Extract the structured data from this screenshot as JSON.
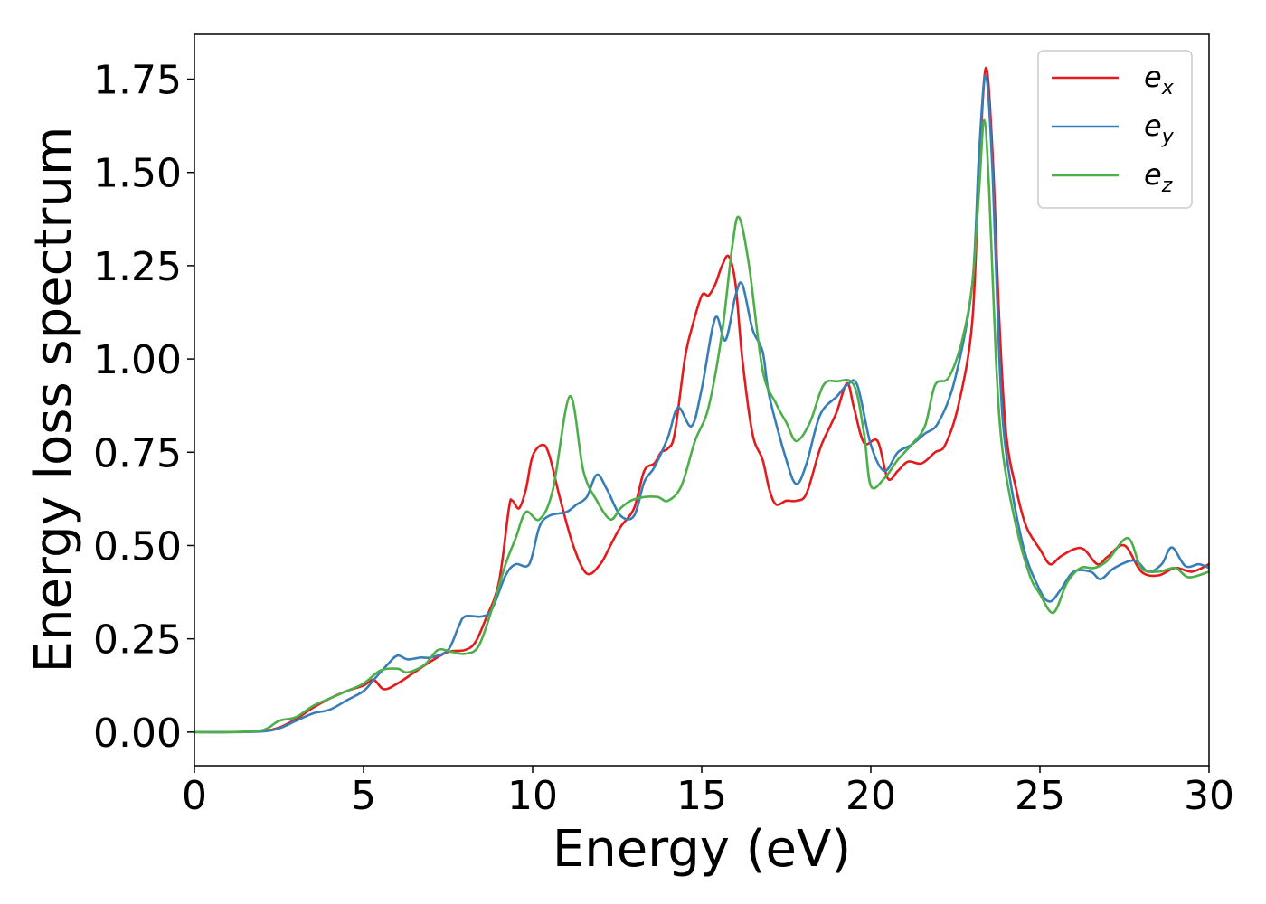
{
  "chart_data": {
    "type": "line",
    "title": "",
    "xlabel": "Energy (eV)",
    "ylabel": "Energy loss spectrum",
    "xlim": [
      0,
      30
    ],
    "ylim": [
      -0.09,
      1.87
    ],
    "x_ticks": [
      0,
      5,
      10,
      15,
      20,
      25,
      30
    ],
    "y_ticks": [
      0.0,
      0.25,
      0.5,
      0.75,
      1.0,
      1.25,
      1.5,
      1.75
    ],
    "x_tick_labels": [
      "0",
      "5",
      "10",
      "15",
      "20",
      "25",
      "30"
    ],
    "y_tick_labels": [
      "0.00",
      "0.25",
      "0.50",
      "0.75",
      "1.00",
      "1.25",
      "1.50",
      "1.75"
    ],
    "grid": false,
    "legend": {
      "placement": "top-right",
      "entries": [
        {
          "base": "e",
          "sub": "x",
          "color": "#e41a1c"
        },
        {
          "base": "e",
          "sub": "y",
          "color": "#377eb8"
        },
        {
          "base": "e",
          "sub": "z",
          "color": "#4daf4a"
        }
      ]
    },
    "series": [
      {
        "color": "#e41a1c",
        "points": [
          [
            0,
            0
          ],
          [
            1,
            0
          ],
          [
            2,
            0.003
          ],
          [
            2.5,
            0.012
          ],
          [
            3,
            0.035
          ],
          [
            3.5,
            0.065
          ],
          [
            4,
            0.09
          ],
          [
            4.5,
            0.11
          ],
          [
            5,
            0.125
          ],
          [
            5.3,
            0.14
          ],
          [
            5.6,
            0.115
          ],
          [
            6,
            0.13
          ],
          [
            6.5,
            0.16
          ],
          [
            7,
            0.19
          ],
          [
            7.5,
            0.215
          ],
          [
            8,
            0.22
          ],
          [
            8.3,
            0.24
          ],
          [
            8.6,
            0.3
          ],
          [
            9,
            0.4
          ],
          [
            9.3,
            0.6
          ],
          [
            9.4,
            0.62
          ],
          [
            9.6,
            0.6
          ],
          [
            9.8,
            0.65
          ],
          [
            10,
            0.74
          ],
          [
            10.3,
            0.77
          ],
          [
            10.5,
            0.74
          ],
          [
            10.8,
            0.63
          ],
          [
            11.2,
            0.5
          ],
          [
            11.6,
            0.425
          ],
          [
            12,
            0.45
          ],
          [
            12.3,
            0.5
          ],
          [
            12.6,
            0.55
          ],
          [
            13,
            0.6
          ],
          [
            13.3,
            0.7
          ],
          [
            13.6,
            0.72
          ],
          [
            13.8,
            0.75
          ],
          [
            14,
            0.76
          ],
          [
            14.2,
            0.8
          ],
          [
            14.5,
            1.0
          ],
          [
            14.7,
            1.08
          ],
          [
            15,
            1.17
          ],
          [
            15.2,
            1.17
          ],
          [
            15.4,
            1.2
          ],
          [
            15.6,
            1.25
          ],
          [
            15.8,
            1.275
          ],
          [
            16,
            1.2
          ],
          [
            16.2,
            1.0
          ],
          [
            16.5,
            0.8
          ],
          [
            16.8,
            0.73
          ],
          [
            17,
            0.65
          ],
          [
            17.2,
            0.61
          ],
          [
            17.5,
            0.62
          ],
          [
            17.8,
            0.62
          ],
          [
            18.1,
            0.64
          ],
          [
            18.5,
            0.76
          ],
          [
            18.8,
            0.82
          ],
          [
            19,
            0.86
          ],
          [
            19.3,
            0.935
          ],
          [
            19.5,
            0.87
          ],
          [
            19.8,
            0.775
          ],
          [
            20.2,
            0.78
          ],
          [
            20.5,
            0.68
          ],
          [
            20.8,
            0.7
          ],
          [
            21.1,
            0.725
          ],
          [
            21.5,
            0.72
          ],
          [
            21.9,
            0.75
          ],
          [
            22.2,
            0.77
          ],
          [
            22.6,
            0.88
          ],
          [
            23,
            1.1
          ],
          [
            23.2,
            1.5
          ],
          [
            23.4,
            1.78
          ],
          [
            23.6,
            1.55
          ],
          [
            23.8,
            1.1
          ],
          [
            24,
            0.8
          ],
          [
            24.3,
            0.65
          ],
          [
            24.6,
            0.55
          ],
          [
            25,
            0.49
          ],
          [
            25.3,
            0.45
          ],
          [
            25.6,
            0.47
          ],
          [
            26,
            0.49
          ],
          [
            26.3,
            0.49
          ],
          [
            26.7,
            0.45
          ],
          [
            27,
            0.47
          ],
          [
            27.5,
            0.5
          ],
          [
            28,
            0.43
          ],
          [
            28.5,
            0.42
          ],
          [
            29,
            0.44
          ],
          [
            29.5,
            0.43
          ],
          [
            30,
            0.45
          ]
        ]
      },
      {
        "color": "#377eb8",
        "points": [
          [
            0,
            0
          ],
          [
            1,
            0
          ],
          [
            2,
            0.002
          ],
          [
            2.5,
            0.01
          ],
          [
            3,
            0.03
          ],
          [
            3.5,
            0.05
          ],
          [
            4,
            0.06
          ],
          [
            4.5,
            0.085
          ],
          [
            5,
            0.11
          ],
          [
            5.3,
            0.14
          ],
          [
            5.7,
            0.18
          ],
          [
            6,
            0.205
          ],
          [
            6.3,
            0.195
          ],
          [
            6.7,
            0.2
          ],
          [
            7,
            0.2
          ],
          [
            7.5,
            0.22
          ],
          [
            7.8,
            0.28
          ],
          [
            8,
            0.31
          ],
          [
            8.5,
            0.31
          ],
          [
            8.8,
            0.33
          ],
          [
            9.2,
            0.42
          ],
          [
            9.5,
            0.45
          ],
          [
            9.9,
            0.45
          ],
          [
            10.2,
            0.55
          ],
          [
            10.5,
            0.58
          ],
          [
            11,
            0.59
          ],
          [
            11.3,
            0.61
          ],
          [
            11.6,
            0.63
          ],
          [
            11.9,
            0.69
          ],
          [
            12.2,
            0.65
          ],
          [
            12.6,
            0.58
          ],
          [
            13,
            0.58
          ],
          [
            13.3,
            0.67
          ],
          [
            13.6,
            0.71
          ],
          [
            14,
            0.79
          ],
          [
            14.3,
            0.87
          ],
          [
            14.7,
            0.82
          ],
          [
            15,
            0.92
          ],
          [
            15.4,
            1.11
          ],
          [
            15.7,
            1.05
          ],
          [
            16,
            1.17
          ],
          [
            16.2,
            1.2
          ],
          [
            16.5,
            1.08
          ],
          [
            16.8,
            1.02
          ],
          [
            17,
            0.9
          ],
          [
            17.5,
            0.73
          ],
          [
            17.8,
            0.665
          ],
          [
            18.1,
            0.72
          ],
          [
            18.5,
            0.85
          ],
          [
            19,
            0.9
          ],
          [
            19.3,
            0.93
          ],
          [
            19.6,
            0.93
          ],
          [
            20,
            0.77
          ],
          [
            20.4,
            0.7
          ],
          [
            20.8,
            0.75
          ],
          [
            21.2,
            0.77
          ],
          [
            21.6,
            0.8
          ],
          [
            22,
            0.83
          ],
          [
            22.5,
            0.95
          ],
          [
            23,
            1.2
          ],
          [
            23.2,
            1.55
          ],
          [
            23.4,
            1.76
          ],
          [
            23.6,
            1.5
          ],
          [
            23.8,
            1.0
          ],
          [
            24,
            0.75
          ],
          [
            24.5,
            0.5
          ],
          [
            25,
            0.38
          ],
          [
            25.3,
            0.35
          ],
          [
            25.6,
            0.38
          ],
          [
            26,
            0.43
          ],
          [
            26.5,
            0.43
          ],
          [
            26.8,
            0.41
          ],
          [
            27.2,
            0.44
          ],
          [
            27.8,
            0.46
          ],
          [
            28.2,
            0.43
          ],
          [
            28.6,
            0.45
          ],
          [
            28.9,
            0.495
          ],
          [
            29.3,
            0.445
          ],
          [
            29.7,
            0.45
          ],
          [
            30,
            0.44
          ]
        ]
      },
      {
        "color": "#4daf4a",
        "points": [
          [
            0,
            0
          ],
          [
            1,
            0
          ],
          [
            2,
            0.005
          ],
          [
            2.5,
            0.03
          ],
          [
            3,
            0.04
          ],
          [
            3.5,
            0.07
          ],
          [
            4,
            0.09
          ],
          [
            4.5,
            0.11
          ],
          [
            5,
            0.13
          ],
          [
            5.5,
            0.165
          ],
          [
            6,
            0.17
          ],
          [
            6.3,
            0.16
          ],
          [
            6.8,
            0.18
          ],
          [
            7.2,
            0.22
          ],
          [
            7.6,
            0.215
          ],
          [
            8,
            0.21
          ],
          [
            8.4,
            0.23
          ],
          [
            8.8,
            0.33
          ],
          [
            9.2,
            0.45
          ],
          [
            9.5,
            0.52
          ],
          [
            9.8,
            0.59
          ],
          [
            10.2,
            0.57
          ],
          [
            10.6,
            0.65
          ],
          [
            11.1,
            0.9
          ],
          [
            11.5,
            0.7
          ],
          [
            11.9,
            0.62
          ],
          [
            12.3,
            0.57
          ],
          [
            12.6,
            0.6
          ],
          [
            12.9,
            0.62
          ],
          [
            13.3,
            0.63
          ],
          [
            13.7,
            0.63
          ],
          [
            14,
            0.62
          ],
          [
            14.4,
            0.66
          ],
          [
            14.8,
            0.78
          ],
          [
            15.2,
            0.87
          ],
          [
            15.6,
            1.07
          ],
          [
            15.9,
            1.3
          ],
          [
            16.1,
            1.38
          ],
          [
            16.4,
            1.25
          ],
          [
            16.8,
            0.97
          ],
          [
            17.2,
            0.88
          ],
          [
            17.5,
            0.83
          ],
          [
            17.8,
            0.78
          ],
          [
            18.2,
            0.83
          ],
          [
            18.6,
            0.93
          ],
          [
            19,
            0.94
          ],
          [
            19.5,
            0.93
          ],
          [
            19.8,
            0.8
          ],
          [
            20,
            0.66
          ],
          [
            20.4,
            0.68
          ],
          [
            20.8,
            0.73
          ],
          [
            21.2,
            0.77
          ],
          [
            21.6,
            0.82
          ],
          [
            21.9,
            0.93
          ],
          [
            22.3,
            0.95
          ],
          [
            22.7,
            1.05
          ],
          [
            23,
            1.2
          ],
          [
            23.2,
            1.45
          ],
          [
            23.35,
            1.64
          ],
          [
            23.5,
            1.45
          ],
          [
            23.7,
            1.0
          ],
          [
            23.9,
            0.75
          ],
          [
            24.3,
            0.55
          ],
          [
            24.7,
            0.42
          ],
          [
            25,
            0.37
          ],
          [
            25.4,
            0.32
          ],
          [
            25.8,
            0.4
          ],
          [
            26.2,
            0.44
          ],
          [
            26.6,
            0.44
          ],
          [
            27,
            0.46
          ],
          [
            27.6,
            0.52
          ],
          [
            28,
            0.44
          ],
          [
            28.5,
            0.43
          ],
          [
            29,
            0.44
          ],
          [
            29.4,
            0.415
          ],
          [
            30,
            0.43
          ]
        ]
      }
    ]
  }
}
